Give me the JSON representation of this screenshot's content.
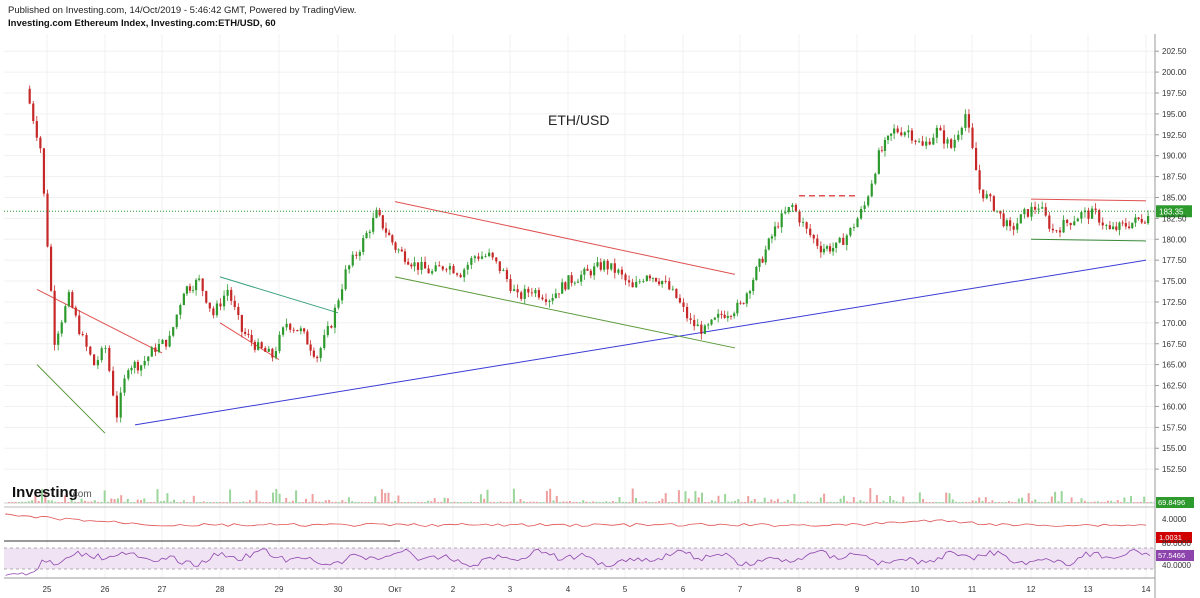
{
  "header": {
    "published": "Published on Investing.com, 14/Oct/2019 - 5:46:42 GMT, Powered by TradingView.",
    "symbol": "Investing.com Ethereum Index, Investing.com:ETH/USD, 60"
  },
  "logo": {
    "brand": "Investing",
    "suffix": ".com"
  },
  "chart_data": {
    "type": "candlestick",
    "title": "ETH/USD",
    "timeframe": "60",
    "x_tick_labels": [
      "25",
      "26",
      "27",
      "28",
      "29",
      "30",
      "Окт",
      "2",
      "3",
      "4",
      "5",
      "6",
      "7",
      "8",
      "9",
      "10",
      "11",
      "12",
      "13",
      "14"
    ],
    "y_tick_labels": [
      "202.50",
      "200.00",
      "197.50",
      "195.00",
      "192.50",
      "190.00",
      "187.50",
      "185.00",
      "182.50",
      "180.00",
      "177.50",
      "175.00",
      "172.50",
      "170.00",
      "167.50",
      "165.00",
      "162.50",
      "160.00",
      "157.50",
      "155.00",
      "152.50"
    ],
    "ylim": [
      151.2,
      203.6
    ],
    "last_price": "183.35",
    "up_color": "#2e9a2e",
    "down_color": "#c62828",
    "price_path": [
      [
        "25",
        198
      ],
      [
        "25",
        191
      ],
      [
        "25",
        168
      ],
      [
        "25",
        173
      ],
      [
        "26",
        168
      ],
      [
        "26",
        165
      ],
      [
        "26",
        167
      ],
      [
        "26",
        159
      ],
      [
        "26",
        165
      ],
      [
        "27",
        165
      ],
      [
        "27",
        167
      ],
      [
        "27",
        168
      ],
      [
        "27",
        174
      ],
      [
        "28",
        175
      ],
      [
        "28",
        171
      ],
      [
        "28",
        174
      ],
      [
        "28",
        169
      ],
      [
        "29",
        167
      ],
      [
        "29",
        166
      ],
      [
        "29",
        170
      ],
      [
        "29",
        169
      ],
      [
        "30",
        166
      ],
      [
        "30",
        170
      ],
      [
        "30",
        176
      ],
      [
        "30",
        179
      ],
      [
        "Окт",
        183
      ],
      [
        "Окт",
        179
      ],
      [
        "Окт",
        177
      ],
      [
        "2",
        176
      ],
      [
        "2",
        177
      ],
      [
        "2",
        176
      ],
      [
        "2",
        178
      ],
      [
        "3",
        178
      ],
      [
        "3",
        176
      ],
      [
        "3",
        173
      ],
      [
        "3",
        174
      ],
      [
        "4",
        173
      ],
      [
        "4",
        175
      ],
      [
        "4",
        176
      ],
      [
        "5",
        177
      ],
      [
        "5",
        176
      ],
      [
        "5",
        174
      ],
      [
        "5",
        176
      ],
      [
        "6",
        175
      ],
      [
        "6",
        173
      ],
      [
        "6",
        170
      ],
      [
        "6",
        169
      ],
      [
        "7",
        171
      ],
      [
        "7",
        172
      ],
      [
        "7",
        177
      ],
      [
        "8",
        182
      ],
      [
        "8",
        184
      ],
      [
        "8",
        181
      ],
      [
        "8",
        179
      ],
      [
        "9",
        179
      ],
      [
        "9",
        181
      ],
      [
        "9",
        184
      ],
      [
        "9",
        190
      ],
      [
        "10",
        193
      ],
      [
        "10",
        193
      ],
      [
        "10",
        191
      ],
      [
        "10",
        193
      ],
      [
        "11",
        191
      ],
      [
        "11",
        195
      ],
      [
        "11",
        186
      ],
      [
        "11",
        184
      ],
      [
        "12",
        181
      ],
      [
        "12",
        183
      ],
      [
        "12",
        184
      ],
      [
        "12",
        181
      ],
      [
        "13",
        182
      ],
      [
        "13",
        183
      ],
      [
        "13",
        183
      ],
      [
        "13",
        181
      ],
      [
        "14",
        182
      ],
      [
        "14",
        183.35
      ]
    ],
    "annotations": {
      "trend_lines": [
        {
          "color": "#3a3ad6",
          "from": [
            "26",
            157.8
          ],
          "to": [
            "14",
            177.5
          ]
        },
        {
          "color": "#e05050",
          "from": [
            "Окт",
            184.5
          ],
          "to": [
            "7",
            175.8
          ]
        },
        {
          "color": "#5a9a3a",
          "from": [
            "Окт",
            175.5
          ],
          "to": [
            "7",
            167
          ]
        },
        {
          "color": "#e05050",
          "from": [
            "12",
            184.8
          ],
          "to": [
            "14",
            184.6
          ]
        },
        {
          "color": "#3a8a3a",
          "from": [
            "12",
            180
          ],
          "to": [
            "14",
            179.8
          ]
        },
        {
          "color": "#e05050",
          "style": "dashed",
          "from": [
            "8",
            185.2
          ],
          "to": [
            "9",
            185.2
          ]
        },
        {
          "color": "#e05050",
          "from": [
            "25",
            174
          ],
          "to": [
            "27",
            166.4
          ]
        },
        {
          "color": "#5a9a3a",
          "from": [
            "25",
            165
          ],
          "to": [
            "26",
            156.8
          ]
        },
        {
          "color": "#3aa080",
          "from": [
            "28",
            175.5
          ],
          "to": [
            "30",
            171.2
          ]
        },
        {
          "color": "#e05050",
          "from": [
            "28",
            170
          ],
          "to": [
            "29",
            165.6
          ]
        }
      ]
    },
    "indicators": {
      "volume_label": "69.8496",
      "oscillator_scale": "4.0000",
      "oscillator_value": "1.0031",
      "rsi_scale_top": "80.0000",
      "rsi_value": "57.5466",
      "rsi_scale_bottom": "40.0000"
    }
  }
}
